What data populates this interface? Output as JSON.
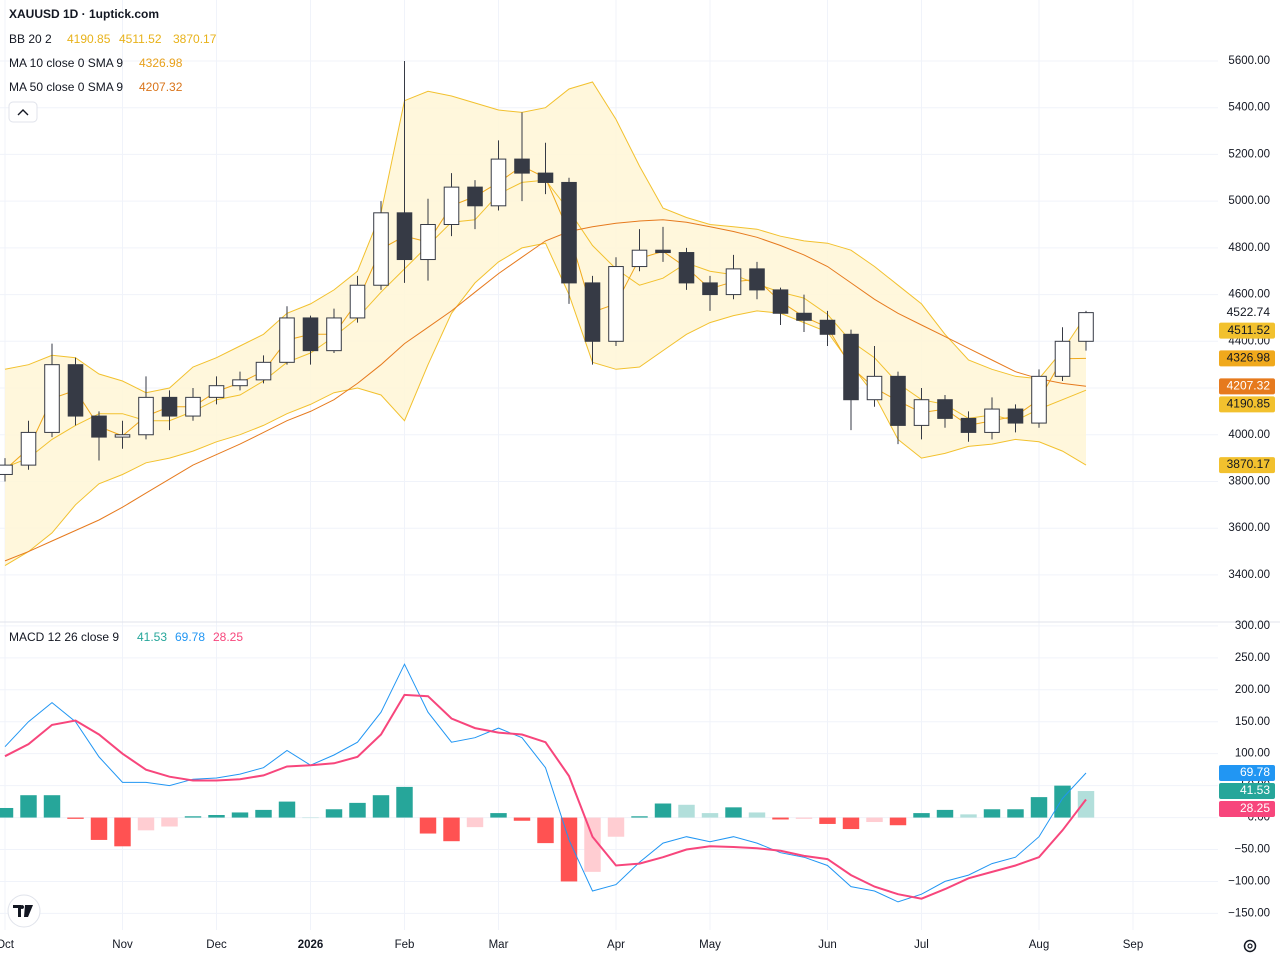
{
  "chart_data": [
    {
      "type": "candlestick",
      "title": "XAUUSD 1D · 1uptick.com",
      "categories": [
        "Oct",
        null,
        null,
        null,
        null,
        "Nov",
        null,
        null,
        null,
        "Dec",
        null,
        null,
        null,
        "2026",
        null,
        null,
        null,
        "Feb",
        null,
        null,
        null,
        "Mar",
        null,
        null,
        null,
        null,
        "Apr",
        null,
        null,
        null,
        "May",
        null,
        null,
        null,
        null,
        "Jun",
        null,
        null,
        null,
        "Jul",
        null,
        null,
        null,
        null,
        "Aug",
        null,
        null,
        null,
        "Sep",
        null,
        null,
        null
      ],
      "open": [
        3830,
        3870,
        4010,
        4300,
        4080,
        3990,
        4000,
        4160,
        4080,
        4160,
        4210,
        4235,
        4310,
        4500,
        4360,
        4500,
        4640,
        4950,
        4750,
        4900,
        5060,
        4980,
        5180,
        5120,
        5080,
        4650,
        4400,
        4720,
        4790,
        4780,
        4650,
        4600,
        4710,
        4620,
        4520,
        4490,
        4430,
        4150,
        4250,
        4040,
        4150,
        4070,
        4010,
        4110,
        4050,
        4250,
        4400,
        null,
        null,
        null,
        null,
        null
      ],
      "high": [
        3900,
        4060,
        4390,
        4330,
        4100,
        4060,
        4250,
        4190,
        4200,
        4250,
        4270,
        4340,
        4550,
        4510,
        4540,
        4680,
        5000,
        5600,
        5010,
        5120,
        5090,
        5260,
        5380,
        5250,
        5100,
        4680,
        4760,
        4880,
        4890,
        4800,
        4680,
        4770,
        4740,
        4630,
        4600,
        4530,
        4450,
        4380,
        4270,
        4200,
        4170,
        4100,
        4160,
        4130,
        4280,
        4460,
        4530,
        null,
        null,
        null,
        null,
        null
      ],
      "low": [
        3800,
        3850,
        3990,
        4040,
        3890,
        3940,
        3980,
        4020,
        4060,
        4130,
        4190,
        4220,
        4300,
        4300,
        4350,
        4480,
        4620,
        4650,
        4660,
        4850,
        4880,
        4960,
        5000,
        5030,
        4560,
        4300,
        4380,
        4700,
        4740,
        4620,
        4530,
        4580,
        4580,
        4470,
        4440,
        4380,
        4020,
        4120,
        3960,
        3980,
        4030,
        3970,
        3980,
        4010,
        4030,
        4230,
        4360,
        null,
        null,
        null,
        null,
        null
      ],
      "close": [
        3870,
        4010,
        4300,
        4080,
        3990,
        4000,
        4160,
        4080,
        4160,
        4210,
        4235,
        4310,
        4500,
        4360,
        4500,
        4640,
        4950,
        4750,
        4900,
        5060,
        4980,
        5180,
        5120,
        5080,
        4650,
        4400,
        4720,
        4790,
        4780,
        4650,
        4600,
        4710,
        4620,
        4520,
        4490,
        4430,
        4150,
        4250,
        4040,
        4150,
        4070,
        4010,
        4110,
        4050,
        4250,
        4400,
        4522.74,
        null,
        null,
        null,
        null,
        null
      ],
      "up_color": "#ffffff",
      "down_color": "#363a45",
      "wick_color": "#363a45",
      "series": [
        {
          "name": "BB 20 2",
          "color": "#f2c12e",
          "fill_color": "#fff6d6",
          "basis": [
            3860,
            3900,
            3980,
            4040,
            4090,
            4090,
            4060,
            4060,
            4100,
            4150,
            4170,
            4230,
            4310,
            4350,
            4420,
            4500,
            4610,
            4710,
            4810,
            4910,
            4920,
            5030,
            5080,
            5090,
            4960,
            4810,
            4710,
            4640,
            4670,
            4735,
            4700,
            4685,
            4645,
            4610,
            4585,
            4515,
            4400,
            4330,
            4220,
            4150,
            4130,
            4070,
            4085,
            4060,
            4110,
            4150,
            4190.85,
            null,
            null,
            null,
            null,
            null
          ],
          "upper": [
            4280,
            4300,
            4340,
            4330,
            4260,
            4230,
            4180,
            4200,
            4290,
            4330,
            4380,
            4430,
            4520,
            4560,
            4620,
            4700,
            4950,
            5430,
            5470,
            5450,
            5420,
            5390,
            5380,
            5400,
            5480,
            5510,
            5350,
            5150,
            4970,
            4930,
            4900,
            4890,
            4880,
            4850,
            4830,
            4820,
            4790,
            4720,
            4640,
            4560,
            4430,
            4320,
            4280,
            4250,
            4240,
            4360,
            4511.52,
            null,
            null,
            null,
            null,
            null
          ],
          "lower": [
            3440,
            3500,
            3580,
            3700,
            3790,
            3830,
            3880,
            3900,
            3930,
            3970,
            4000,
            4040,
            4090,
            4130,
            4180,
            4200,
            4170,
            4060,
            4300,
            4520,
            4650,
            4740,
            4800,
            4820,
            4600,
            4310,
            4280,
            4290,
            4360,
            4430,
            4480,
            4510,
            4530,
            4520,
            4480,
            4440,
            4300,
            4170,
            3980,
            3900,
            3920,
            3950,
            3960,
            3980,
            3970,
            3930,
            3870.17,
            null,
            null,
            null,
            null,
            null
          ]
        },
        {
          "name": "MA 10 close 0 SMA 9",
          "color": "#f0a91c",
          "values": [
            3850,
            3940,
            4155,
            4190,
            4035,
            3995,
            4080,
            4120,
            4120,
            4185,
            4222,
            4272,
            4405,
            4430,
            4430,
            4570,
            4795,
            4850,
            4825,
            4980,
            5020,
            5080,
            5150,
            5100,
            4865,
            4525,
            4560,
            4755,
            4785,
            4715,
            4625,
            4655,
            4665,
            4570,
            4505,
            4460,
            4290,
            4200,
            4145,
            4095,
            4110,
            4040,
            4060,
            4080,
            4150,
            4325,
            4326.98,
            null,
            null,
            null,
            null,
            null
          ]
        },
        {
          "name": "MA 50 close 0 SMA 9",
          "color": "#e67a1e",
          "values": [
            3460,
            3500,
            3545,
            3590,
            3635,
            3690,
            3750,
            3810,
            3870,
            3915,
            3960,
            4010,
            4060,
            4100,
            4150,
            4220,
            4300,
            4390,
            4460,
            4530,
            4610,
            4690,
            4760,
            4830,
            4870,
            4890,
            4905,
            4915,
            4920,
            4910,
            4890,
            4870,
            4845,
            4810,
            4770,
            4720,
            4650,
            4580,
            4520,
            4470,
            4420,
            4370,
            4320,
            4270,
            4240,
            4220,
            4207.32,
            null,
            null,
            null,
            null,
            null
          ]
        }
      ],
      "ylim": [
        3207,
        5861
      ],
      "yticks": [
        {
          "value": 3400,
          "label": "3400.00"
        },
        {
          "value": 3600,
          "label": "3600.00"
        },
        {
          "value": 3800,
          "label": "3800.00"
        },
        {
          "value": 4000,
          "label": "4000.00"
        },
        {
          "value": 4200,
          "label": "4200.00"
        },
        {
          "value": 4400,
          "label": "4400.00"
        },
        {
          "value": 4600,
          "label": "4600.00"
        },
        {
          "value": 4800,
          "label": "4800.00"
        },
        {
          "value": 5000,
          "label": "5000.00"
        },
        {
          "value": 5200,
          "label": "5200.00"
        },
        {
          "value": 5400,
          "label": "5400.00"
        },
        {
          "value": 5600,
          "label": "5600.00"
        }
      ],
      "grid": true
    },
    {
      "type": "macd",
      "title": "MACD 12 26 close 9",
      "series": [
        {
          "name": "Histogram",
          "colors": {
            "rise_above": "#26a69a",
            "fall_above": "#b2dfdb",
            "rise_below": "#ffcdd2",
            "fall_below": "#ff5252"
          },
          "color": "#26a69a",
          "values": [
            15,
            35,
            35,
            -2,
            -35,
            -45,
            -20,
            -14,
            2,
            4,
            8,
            12,
            25,
            0,
            13,
            23,
            35,
            48,
            -25,
            -37,
            -15,
            7,
            -5,
            -40,
            -100,
            -85,
            -30,
            2,
            22,
            20,
            7,
            16,
            8,
            -3,
            -2,
            -10,
            -18,
            -7,
            -12,
            7,
            12,
            5,
            13,
            13,
            32,
            50,
            41.53,
            null,
            null,
            null,
            null,
            null
          ]
        },
        {
          "name": "MACD",
          "color": "#2196f3",
          "values": [
            111,
            150,
            180,
            150,
            95,
            55,
            55,
            50,
            60,
            62,
            68,
            78,
            105,
            82,
            98,
            118,
            165,
            240,
            165,
            118,
            125,
            140,
            125,
            78,
            -35,
            -115,
            -105,
            -70,
            -40,
            -30,
            -38,
            -30,
            -40,
            -55,
            -62,
            -75,
            -108,
            -115,
            -132,
            -120,
            -100,
            -90,
            -72,
            -62,
            -30,
            30,
            69.78,
            null,
            null,
            null,
            null,
            null
          ]
        },
        {
          "name": "Signal",
          "color": "#f7467c",
          "values": [
            96,
            115,
            145,
            152,
            130,
            100,
            75,
            64,
            58,
            58,
            60,
            66,
            80,
            82,
            85,
            95,
            130,
            192,
            190,
            155,
            140,
            133,
            130,
            118,
            65,
            -30,
            -75,
            -72,
            -62,
            -50,
            -45,
            -46,
            -48,
            -52,
            -60,
            -65,
            -90,
            -108,
            -120,
            -127,
            -112,
            -95,
            -85,
            -75,
            -62,
            -20,
            28.25,
            null,
            null,
            null,
            null,
            null
          ]
        }
      ],
      "ylim": [
        -176,
        303
      ],
      "yticks": [
        {
          "value": -150,
          "label": "−150.00"
        },
        {
          "value": -100,
          "label": "−100.00"
        },
        {
          "value": -50,
          "label": "−50.00"
        },
        {
          "value": 0,
          "label": "0.00"
        },
        {
          "value": 50,
          "label": "50.00"
        },
        {
          "value": 100,
          "label": "100.00"
        },
        {
          "value": 150,
          "label": "150.00"
        },
        {
          "value": 200,
          "label": "200.00"
        },
        {
          "value": 250,
          "label": "250.00"
        },
        {
          "value": 300,
          "label": "300.00"
        }
      ],
      "grid": true
    }
  ]
}
